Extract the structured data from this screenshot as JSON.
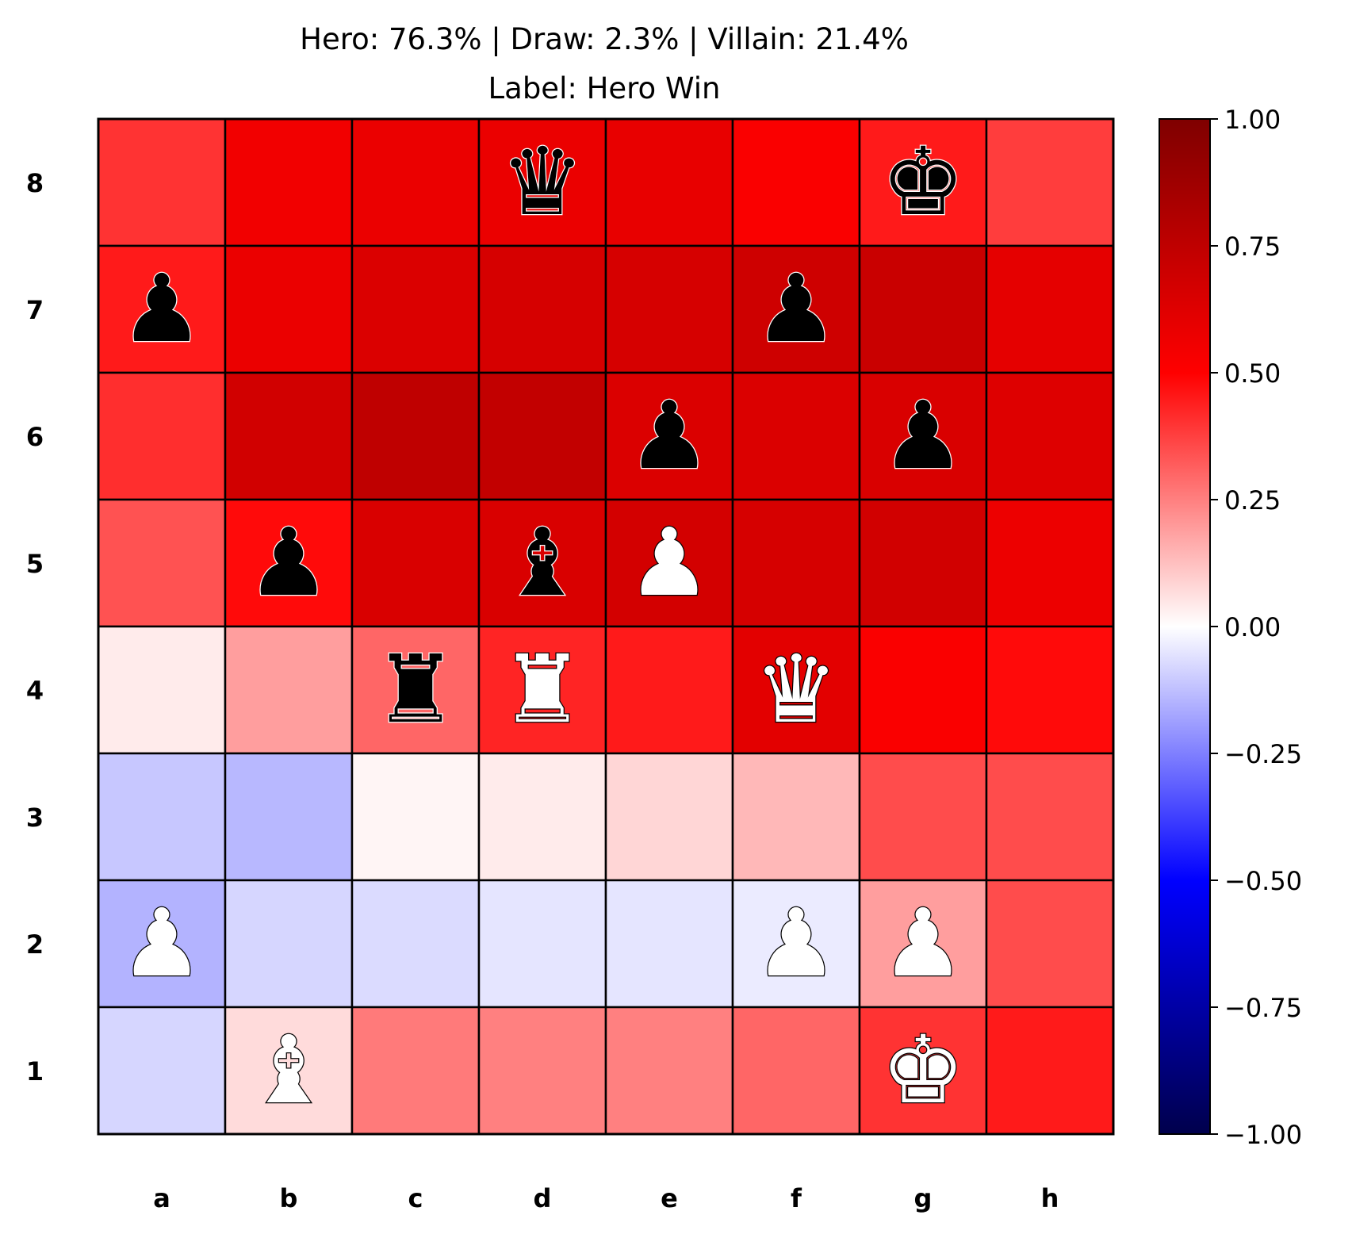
{
  "chart_data": {
    "type": "heatmap",
    "title": "Hero: 76.3% | Draw: 2.3% | Villain: 21.4%",
    "subtitle": "Label: Hero Win",
    "outcome": {
      "hero_pct": 76.3,
      "draw_pct": 2.3,
      "villain_pct": 21.4,
      "label": "Hero Win"
    },
    "files": [
      "a",
      "b",
      "c",
      "d",
      "e",
      "f",
      "g",
      "h"
    ],
    "ranks": [
      "8",
      "7",
      "6",
      "5",
      "4",
      "3",
      "2",
      "1"
    ],
    "values": [
      [
        0.4,
        0.55,
        0.58,
        0.58,
        0.59,
        0.52,
        0.45,
        0.38
      ],
      [
        0.45,
        0.58,
        0.64,
        0.66,
        0.66,
        0.69,
        0.71,
        0.6
      ],
      [
        0.41,
        0.68,
        0.75,
        0.74,
        0.64,
        0.64,
        0.65,
        0.63
      ],
      [
        0.34,
        0.48,
        0.65,
        0.65,
        0.67,
        0.66,
        0.68,
        0.57
      ],
      [
        0.04,
        0.19,
        0.3,
        0.43,
        0.45,
        0.61,
        0.52,
        0.48
      ],
      [
        -0.11,
        -0.14,
        0.02,
        0.04,
        0.08,
        0.14,
        0.35,
        0.35
      ],
      [
        -0.15,
        -0.08,
        -0.07,
        -0.05,
        -0.05,
        -0.04,
        0.19,
        0.35
      ],
      [
        -0.08,
        0.07,
        0.26,
        0.25,
        0.25,
        0.3,
        0.4,
        0.45
      ]
    ],
    "pieces": [
      {
        "square": "d8",
        "piece": "queen",
        "color": "black"
      },
      {
        "square": "g8",
        "piece": "king",
        "color": "black"
      },
      {
        "square": "a7",
        "piece": "pawn",
        "color": "black"
      },
      {
        "square": "f7",
        "piece": "pawn",
        "color": "black"
      },
      {
        "square": "e6",
        "piece": "pawn",
        "color": "black"
      },
      {
        "square": "g6",
        "piece": "pawn",
        "color": "black"
      },
      {
        "square": "b5",
        "piece": "pawn",
        "color": "black"
      },
      {
        "square": "d5",
        "piece": "bishop",
        "color": "black"
      },
      {
        "square": "e5",
        "piece": "pawn",
        "color": "white"
      },
      {
        "square": "c4",
        "piece": "rook",
        "color": "black"
      },
      {
        "square": "d4",
        "piece": "rook",
        "color": "white"
      },
      {
        "square": "f4",
        "piece": "queen",
        "color": "white"
      },
      {
        "square": "a2",
        "piece": "pawn",
        "color": "white"
      },
      {
        "square": "f2",
        "piece": "pawn",
        "color": "white"
      },
      {
        "square": "g2",
        "piece": "pawn",
        "color": "white"
      },
      {
        "square": "b1",
        "piece": "bishop",
        "color": "white"
      },
      {
        "square": "g1",
        "piece": "king",
        "color": "white"
      }
    ],
    "colorbar": {
      "range": [
        -1.0,
        1.0
      ],
      "ticks": [
        1.0,
        0.75,
        0.5,
        0.25,
        0.0,
        -0.25,
        -0.5,
        -0.75,
        -1.0
      ],
      "tick_labels": [
        "1.00",
        "0.75",
        "0.50",
        "0.25",
        "0.00",
        "−0.25",
        "−0.50",
        "−0.75",
        "−1.00"
      ],
      "colormap": "seismic",
      "stops": [
        "#00004c",
        "#0000ff",
        "#ffffff",
        "#ff0000",
        "#7f0000"
      ]
    },
    "grid": true,
    "legend": "none"
  }
}
